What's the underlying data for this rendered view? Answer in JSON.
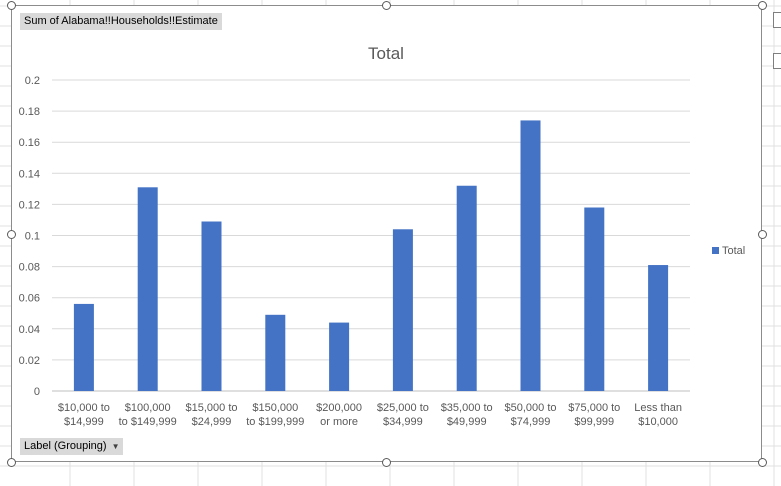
{
  "field_button_label": "Sum of Alabama!!Households!!Estimate",
  "axis_field_button_label": "Label (Grouping)",
  "axis_field_button_arrow": "▼",
  "legend": {
    "label": "Total"
  },
  "chart_data": {
    "type": "bar",
    "title": "Total",
    "xlabel": "",
    "ylabel": "",
    "categories": [
      [
        "$10,000 to",
        "$14,999"
      ],
      [
        "$100,000",
        "to $149,999"
      ],
      [
        "$15,000 to",
        "$24,999"
      ],
      [
        "$150,000",
        "to $199,999"
      ],
      [
        "$200,000",
        "or more"
      ],
      [
        "$25,000 to",
        "$34,999"
      ],
      [
        "$35,000 to",
        "$49,999"
      ],
      [
        "$50,000 to",
        "$74,999"
      ],
      [
        "$75,000 to",
        "$99,999"
      ],
      [
        "Less than",
        "$10,000"
      ]
    ],
    "series": [
      {
        "name": "Total",
        "color": "#4472c4",
        "values": [
          0.056,
          0.131,
          0.109,
          0.049,
          0.044,
          0.104,
          0.132,
          0.174,
          0.118,
          0.081
        ]
      }
    ],
    "ylim": [
      0,
      0.2
    ],
    "yticks": [
      "0",
      "0.02",
      "0.04",
      "0.06",
      "0.08",
      "0.1",
      "0.12",
      "0.14",
      "0.16",
      "0.18",
      "0.2"
    ],
    "grid": true,
    "legend_position": "right"
  }
}
